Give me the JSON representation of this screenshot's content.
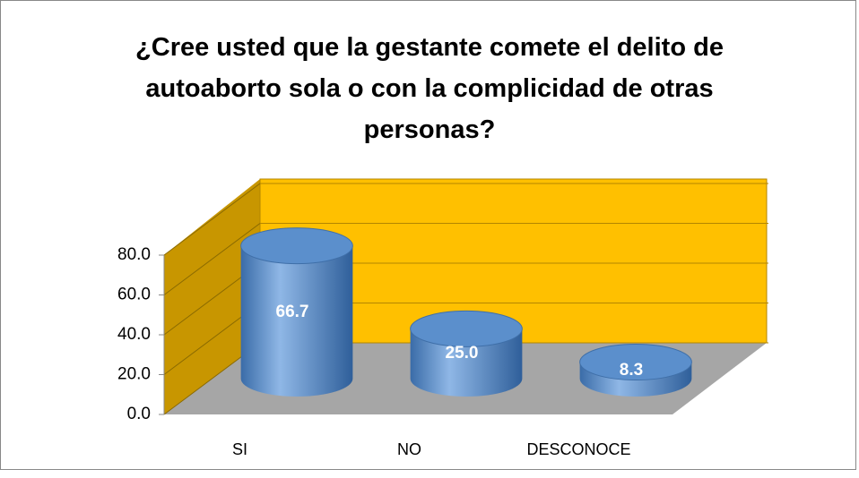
{
  "chart_data": {
    "type": "bar3d",
    "title": "¿Cree usted que la gestante comete el delito de autoaborto sola o con la complicidad de otras personas?",
    "categories": [
      "SI",
      "NO",
      "DESCONOCE"
    ],
    "values": [
      66.7,
      25.0,
      8.3
    ],
    "value_labels": [
      "66.7",
      "25.0",
      "8.3"
    ],
    "color": "#4F81BD",
    "ylim": [
      0,
      80
    ],
    "yticks": [
      {
        "value": 0,
        "label": "0.0"
      },
      {
        "value": 20,
        "label": "20.0"
      },
      {
        "value": 40,
        "label": "40.0"
      },
      {
        "value": 60,
        "label": "60.0"
      },
      {
        "value": 80,
        "label": "80.0"
      }
    ],
    "grid": true
  }
}
